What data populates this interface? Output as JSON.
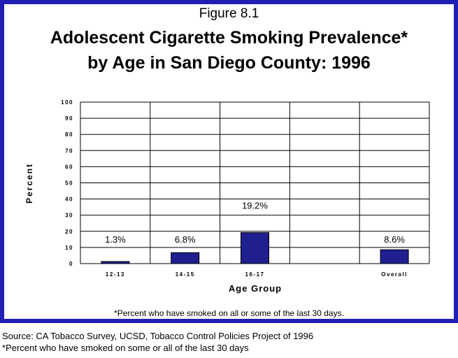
{
  "figure_label": "Figure 8.1",
  "title_line1": "Adolescent Cigarette Smoking Prevalence*",
  "title_line2": "by Age in San Diego County: 1996",
  "footnote_inside": "*Percent who have smoked on all or some of the last 30 days.",
  "source_line1": "Source: CA Tobacco Survey, UCSD, Tobacco Control Policies Project of 1996",
  "source_line2": "*Percent who have smoked on some or all of the last 30 days",
  "colors": {
    "border": "#1f1fb4",
    "bar": "#1f1f8f"
  },
  "chart_data": {
    "type": "bar",
    "xlabel": "Age Group",
    "ylabel": "Percent",
    "ylim": [
      0,
      100
    ],
    "yticks": [
      0,
      10,
      20,
      30,
      40,
      50,
      60,
      70,
      80,
      90,
      100
    ],
    "categories": [
      "12-13",
      "14-15",
      "16-17",
      "",
      "Overall"
    ],
    "values": [
      1.3,
      6.8,
      19.2,
      null,
      8.6
    ],
    "data_labels": [
      "1.3%",
      "6.8%",
      "19.2%",
      "",
      "8.6%"
    ],
    "grid": true,
    "legend": "none"
  }
}
